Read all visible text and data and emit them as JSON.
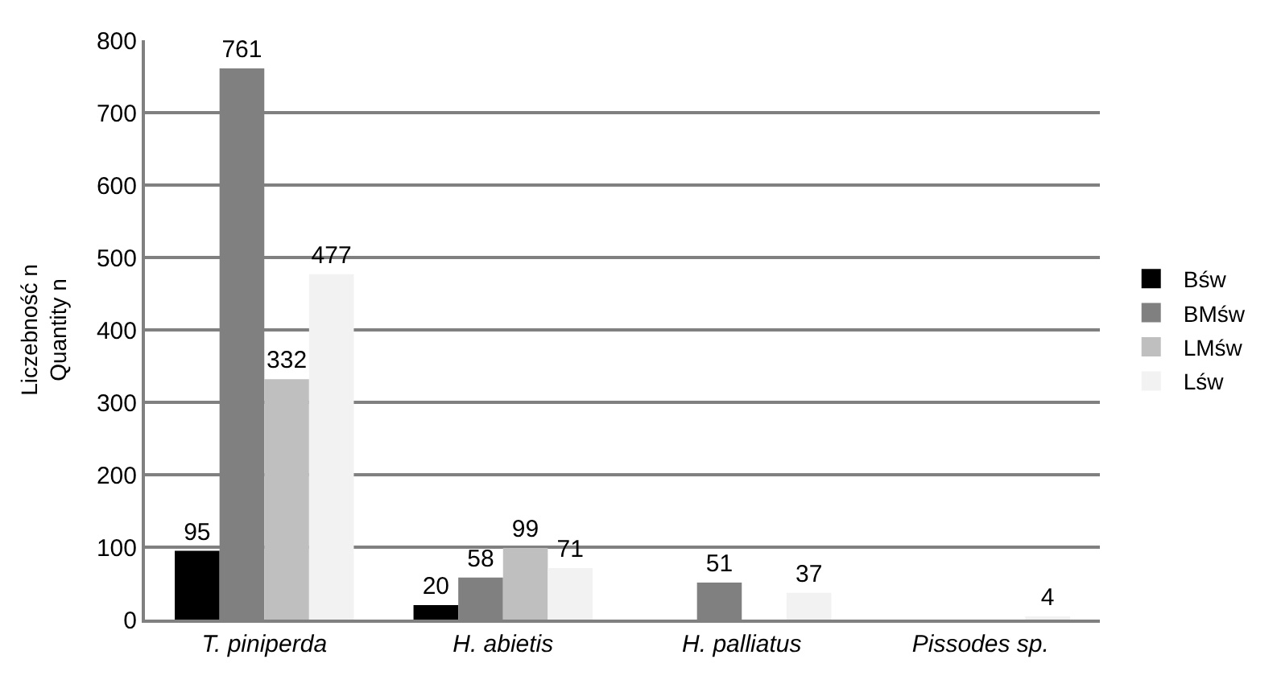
{
  "chart_data": {
    "type": "bar",
    "ylabel": "Liczebność n\nQuantity n",
    "categories": [
      "T. piniperda",
      "H. abietis",
      "H. palliatus",
      "Pissodes sp."
    ],
    "series": [
      {
        "name": "Bśw",
        "color": "#000000",
        "values": [
          95,
          20,
          null,
          null
        ]
      },
      {
        "name": "BMśw",
        "color": "#808080",
        "values": [
          761,
          58,
          51,
          null
        ]
      },
      {
        "name": "LMśw",
        "color": "#bfbfbf",
        "values": [
          332,
          99,
          null,
          null
        ]
      },
      {
        "name": "Lśw",
        "color": "#f2f2f2",
        "values": [
          477,
          71,
          37,
          4
        ]
      }
    ],
    "ylim": [
      0,
      800
    ],
    "yticks": [
      0,
      100,
      200,
      300,
      400,
      500,
      600,
      700,
      800
    ],
    "grid": "y",
    "legend": "right",
    "data_labels": true
  }
}
